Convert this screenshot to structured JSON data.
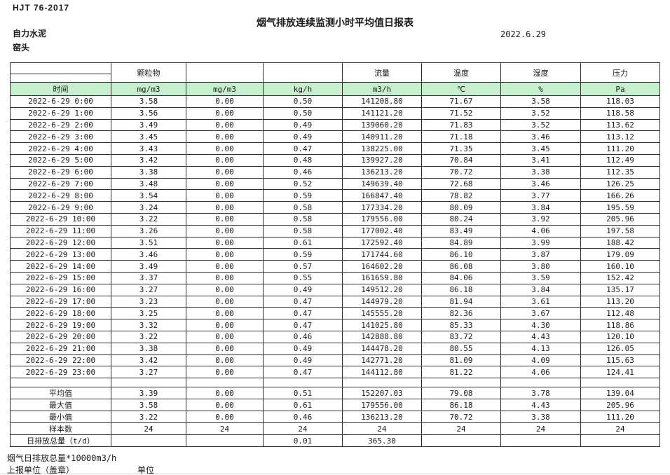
{
  "page": {
    "standard_code": "HJT  76-2017",
    "title": "烟气排放连续监测小时平均值日报表",
    "date": "2022.6.29",
    "company": "自力水泥",
    "station": "窑头"
  },
  "colors": {
    "units_row_green": "#c6efce",
    "border": "#2e2e2e"
  },
  "table": {
    "group_headers": [
      "",
      "颗粒物",
      "",
      "",
      "流量",
      "温度",
      "湿度",
      "压力"
    ],
    "units_row": [
      "时间",
      "mg/m3",
      "mg/m3",
      "kg/h",
      "m3/h",
      "℃",
      "%",
      "Pa"
    ],
    "rows": [
      [
        "2022-6-29 0:00",
        "3.58",
        "0.00",
        "0.50",
        "141208.80",
        "71.67",
        "3.58",
        "118.03"
      ],
      [
        "2022-6-29 1:00",
        "3.56",
        "0.00",
        "0.50",
        "141121.20",
        "71.52",
        "3.52",
        "118.58"
      ],
      [
        "2022-6-29 2:00",
        "3.49",
        "0.00",
        "0.49",
        "139060.20",
        "71.83",
        "3.52",
        "113.62"
      ],
      [
        "2022-6-29 3:00",
        "3.45",
        "0.00",
        "0.49",
        "140911.20",
        "71.18",
        "3.46",
        "113.12"
      ],
      [
        "2022-6-29 4:00",
        "3.43",
        "0.00",
        "0.47",
        "138225.00",
        "71.35",
        "3.45",
        "111.20"
      ],
      [
        "2022-6-29 5:00",
        "3.42",
        "0.00",
        "0.48",
        "139927.20",
        "70.84",
        "3.41",
        "112.49"
      ],
      [
        "2022-6-29 6:00",
        "3.38",
        "0.00",
        "0.46",
        "136213.20",
        "70.72",
        "3.38",
        "112.35"
      ],
      [
        "2022-6-29 7:00",
        "3.48",
        "0.00",
        "0.52",
        "149639.40",
        "72.68",
        "3.46",
        "126.25"
      ],
      [
        "2022-6-29 8:00",
        "3.54",
        "0.00",
        "0.59",
        "166847.40",
        "78.82",
        "3.77",
        "166.26"
      ],
      [
        "2022-6-29 9:00",
        "3.24",
        "0.00",
        "0.58",
        "177334.20",
        "80.09",
        "3.84",
        "195.59"
      ],
      [
        "2022-6-29 10:00",
        "3.22",
        "0.00",
        "0.58",
        "179556.00",
        "80.24",
        "3.92",
        "205.96"
      ],
      [
        "2022-6-29 11:00",
        "3.26",
        "0.00",
        "0.58",
        "177002.40",
        "83.49",
        "4.06",
        "197.58"
      ],
      [
        "2022-6-29 12:00",
        "3.51",
        "0.00",
        "0.61",
        "172592.40",
        "84.89",
        "3.99",
        "188.42"
      ],
      [
        "2022-6-29 13:00",
        "3.46",
        "0.00",
        "0.59",
        "171744.60",
        "86.10",
        "3.87",
        "179.09"
      ],
      [
        "2022-6-29 14:00",
        "3.49",
        "0.00",
        "0.57",
        "164602.20",
        "86.08",
        "3.80",
        "160.10"
      ],
      [
        "2022-6-29 15:00",
        "3.37",
        "0.00",
        "0.55",
        "161659.80",
        "84.06",
        "3.59",
        "152.42"
      ],
      [
        "2022-6-29 16:00",
        "3.27",
        "0.00",
        "0.49",
        "149512.20",
        "86.18",
        "3.84",
        "135.17"
      ],
      [
        "2022-6-29 17:00",
        "3.23",
        "0.00",
        "0.47",
        "144979.20",
        "81.94",
        "3.61",
        "113.20"
      ],
      [
        "2022-6-29 18:00",
        "3.25",
        "0.00",
        "0.47",
        "145555.20",
        "82.36",
        "3.67",
        "112.48"
      ],
      [
        "2022-6-29 19:00",
        "3.32",
        "0.00",
        "0.47",
        "141025.80",
        "85.33",
        "4.30",
        "118.86"
      ],
      [
        "2022-6-29 20:00",
        "3.22",
        "0.00",
        "0.46",
        "142888.80",
        "83.72",
        "4.43",
        "120.10"
      ],
      [
        "2022-6-29 21:00",
        "3.38",
        "0.00",
        "0.49",
        "144478.20",
        "80.55",
        "4.13",
        "126.05"
      ],
      [
        "2022-6-29 22:00",
        "3.42",
        "0.00",
        "0.49",
        "142771.20",
        "81.09",
        "4.09",
        "115.63"
      ],
      [
        "2022-6-29 23:00",
        "3.27",
        "0.00",
        "0.47",
        "144112.80",
        "81.22",
        "4.06",
        "124.41"
      ]
    ],
    "summary_rows": [
      {
        "label": "平均值",
        "values": [
          "3.39",
          "0.00",
          "0.51",
          "152207.03",
          "79.08",
          "3.78",
          "139.04"
        ]
      },
      {
        "label": "最大值",
        "values": [
          "3.58",
          "0.00",
          "0.61",
          "179556.00",
          "86.18",
          "4.43",
          "205.96"
        ]
      },
      {
        "label": "最小值",
        "values": [
          "3.22",
          "0.00",
          "0.46",
          "136213.20",
          "70.72",
          "3.38",
          "111.20"
        ]
      },
      {
        "label": "样本数",
        "values": [
          "24",
          "24",
          "24",
          "24",
          "24",
          "24",
          "24"
        ]
      },
      {
        "label": "日排放总量（t/d）",
        "values": [
          "",
          "",
          "0.01",
          "365.30",
          "",
          "",
          ""
        ]
      }
    ]
  },
  "footer": {
    "note": "烟气日排放总量*10000m3/h",
    "report_org_label": "上报单位（盖章）",
    "unit_label": "单位"
  }
}
